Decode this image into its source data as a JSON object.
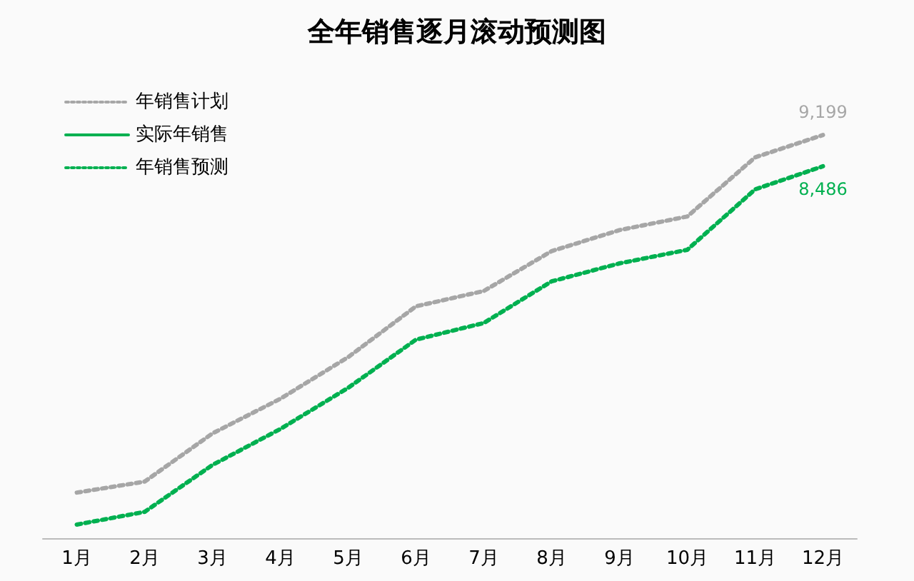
{
  "chart_data": {
    "type": "line",
    "title": "全年销售逐月滚动预测图",
    "tick_labels": "x",
    "categories": [
      "1月",
      "2月",
      "3月",
      "4月",
      "5月",
      "6月",
      "7月",
      "8月",
      "9月",
      "10月",
      "11月",
      "12月"
    ],
    "series": [
      {
        "name": "年销售计划",
        "color": "#a6a6a6",
        "line_style": "dotted",
        "values": [
          1040,
          1290,
          2390,
          3180,
          4130,
          5290,
          5640,
          6550,
          7030,
          7340,
          8690,
          9199
        ],
        "value_labels": [
          null,
          null,
          null,
          null,
          null,
          null,
          null,
          null,
          null,
          null,
          null,
          "9,199"
        ]
      },
      {
        "name": "实际年销售",
        "color": "#00b050",
        "line_style": "solid",
        "values": [
          null,
          null,
          null,
          null,
          null,
          null,
          null,
          null,
          null,
          null,
          null,
          null
        ]
      },
      {
        "name": "年销售预测",
        "color": "#00b050",
        "line_style": "dotted",
        "values": [
          310,
          600,
          1670,
          2490,
          3430,
          4530,
          4910,
          5860,
          6270,
          6580,
          7960,
          8486
        ],
        "value_labels": [
          null,
          null,
          null,
          null,
          null,
          null,
          null,
          null,
          null,
          null,
          null,
          "8,486"
        ]
      }
    ],
    "legend": "top left",
    "marker": "none",
    "grid": false
  }
}
